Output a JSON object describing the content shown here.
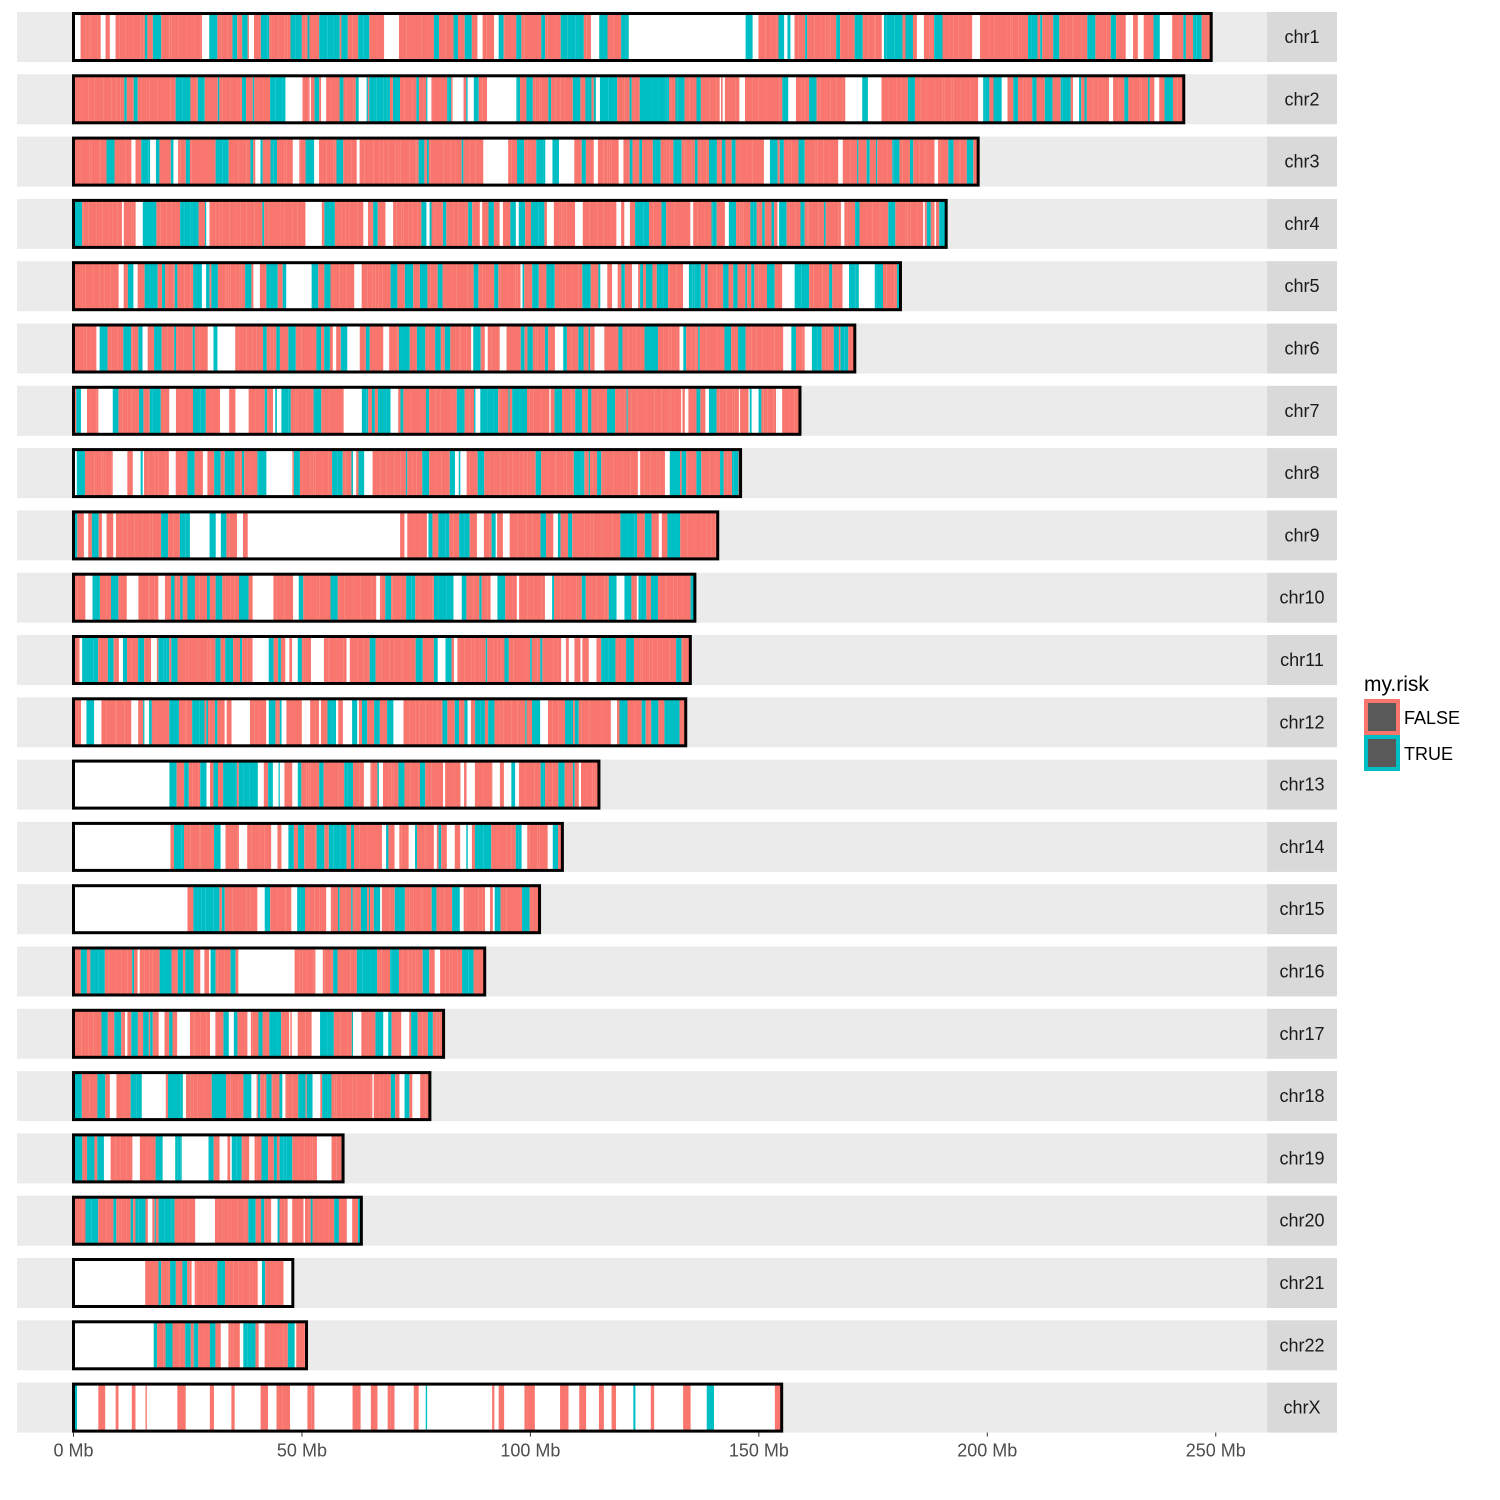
{
  "chart_data": {
    "type": "bar",
    "title": "",
    "xlabel": "",
    "ylabel": "",
    "xlim_mb": [
      0,
      260
    ],
    "x_ticks": [
      {
        "value": 0,
        "label": "0 Mb"
      },
      {
        "value": 50,
        "label": "50 Mb"
      },
      {
        "value": 100,
        "label": "100 Mb"
      },
      {
        "value": 150,
        "label": "150 Mb"
      },
      {
        "value": 200,
        "label": "200 Mb"
      },
      {
        "value": 250,
        "label": "250 Mb"
      }
    ],
    "legend": {
      "title": "my.risk",
      "position": "right",
      "entries": [
        {
          "label": "FALSE",
          "color": "#F8766D"
        },
        {
          "label": "TRUE",
          "color": "#00BFC4"
        }
      ]
    },
    "colors": {
      "FALSE": "#F8766D",
      "TRUE": "#00BFC4",
      "panel_bg": "#EBEBEB",
      "strip_bg": "#D9D9D9",
      "outline": "#000000"
    },
    "chromosomes": [
      {
        "name": "chr1",
        "length_mb": 249,
        "gaps_mb": [
          [
            121.5,
            145.5
          ]
        ],
        "true_density": 0.3,
        "fill_density": 0.9
      },
      {
        "name": "chr2",
        "length_mb": 243,
        "gaps_mb": [
          [
            89.5,
            96.5
          ]
        ],
        "true_density": 0.3,
        "fill_density": 0.88
      },
      {
        "name": "chr3",
        "length_mb": 198,
        "gaps_mb": [
          [
            89.5,
            94.5
          ]
        ],
        "true_density": 0.25,
        "fill_density": 0.88
      },
      {
        "name": "chr4",
        "length_mb": 191,
        "gaps_mb": [
          [
            49.5,
            53.5
          ]
        ],
        "true_density": 0.28,
        "fill_density": 0.85
      },
      {
        "name": "chr5",
        "length_mb": 181,
        "gaps_mb": [
          [
            46.5,
            50.5
          ]
        ],
        "true_density": 0.28,
        "fill_density": 0.86
      },
      {
        "name": "chr6",
        "length_mb": 171,
        "gaps_mb": [
          [
            58.5,
            62.5
          ]
        ],
        "true_density": 0.28,
        "fill_density": 0.88
      },
      {
        "name": "chr7",
        "length_mb": 159,
        "gaps_mb": [
          [
            58.0,
            62.5
          ]
        ],
        "true_density": 0.25,
        "fill_density": 0.88
      },
      {
        "name": "chr8",
        "length_mb": 146,
        "gaps_mb": [
          [
            43.5,
            47.5
          ]
        ],
        "true_density": 0.25,
        "fill_density": 0.86
      },
      {
        "name": "chr9",
        "length_mb": 141,
        "gaps_mb": [
          [
            39.0,
            71.0
          ]
        ],
        "true_density": 0.28,
        "fill_density": 0.85
      },
      {
        "name": "chr10",
        "length_mb": 136,
        "gaps_mb": [
          [
            38.5,
            42.5
          ]
        ],
        "true_density": 0.25,
        "fill_density": 0.88
      },
      {
        "name": "chr11",
        "length_mb": 135,
        "gaps_mb": [
          [
            51.5,
            54.5
          ]
        ],
        "true_density": 0.28,
        "fill_density": 0.9
      },
      {
        "name": "chr12",
        "length_mb": 134,
        "gaps_mb": [
          [
            34.0,
            38.0
          ]
        ],
        "true_density": 0.3,
        "fill_density": 0.86
      },
      {
        "name": "chr13",
        "length_mb": 115,
        "gaps_mb": [
          [
            0.0,
            19.0
          ]
        ],
        "true_density": 0.25,
        "fill_density": 0.86
      },
      {
        "name": "chr14",
        "length_mb": 107,
        "gaps_mb": [
          [
            0.0,
            20.5
          ]
        ],
        "true_density": 0.25,
        "fill_density": 0.86
      },
      {
        "name": "chr15",
        "length_mb": 102,
        "gaps_mb": [
          [
            0.0,
            23.5
          ]
        ],
        "true_density": 0.3,
        "fill_density": 0.88
      },
      {
        "name": "chr16",
        "length_mb": 90,
        "gaps_mb": [
          [
            35.5,
            48.0
          ]
        ],
        "true_density": 0.3,
        "fill_density": 0.86
      },
      {
        "name": "chr17",
        "length_mb": 81,
        "gaps_mb": [
          [
            22.0,
            25.0
          ]
        ],
        "true_density": 0.25,
        "fill_density": 0.88
      },
      {
        "name": "chr18",
        "length_mb": 78,
        "gaps_mb": [
          [
            14.5,
            19.0
          ]
        ],
        "true_density": 0.3,
        "fill_density": 0.86
      },
      {
        "name": "chr19",
        "length_mb": 59,
        "gaps_mb": [
          [
            24.5,
            28.5
          ]
        ],
        "true_density": 0.3,
        "fill_density": 0.86
      },
      {
        "name": "chr20",
        "length_mb": 63,
        "gaps_mb": [
          [
            25.5,
            30.0
          ]
        ],
        "true_density": 0.3,
        "fill_density": 0.86
      },
      {
        "name": "chr21",
        "length_mb": 48,
        "gaps_mb": [
          [
            0.0,
            15.5
          ]
        ],
        "true_density": 0.3,
        "fill_density": 0.86
      },
      {
        "name": "chr22",
        "length_mb": 51,
        "gaps_mb": [
          [
            0.0,
            17.0
          ]
        ],
        "true_density": 0.25,
        "fill_density": 0.88
      },
      {
        "name": "chrX",
        "length_mb": 155,
        "gaps_mb": [],
        "true_density": 0.15,
        "fill_density": 0.22
      }
    ]
  }
}
